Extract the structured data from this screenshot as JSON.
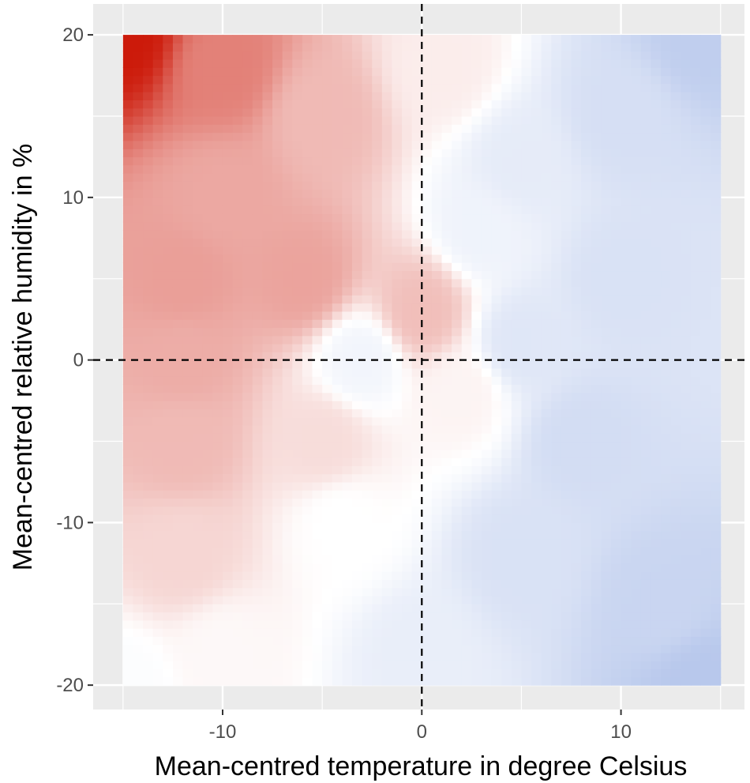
{
  "chart_data": {
    "type": "heatmap",
    "title": "",
    "xlabel": "Mean-centred temperature in degree Celsius",
    "ylabel": "Mean-centred relative humidity in %",
    "xlim": [
      -16.5,
      16.2
    ],
    "ylim": [
      -21.5,
      21.9
    ],
    "data_extent": {
      "x": [
        -15,
        15
      ],
      "y": [
        -20,
        20
      ]
    },
    "x_ticks": [
      -10,
      0,
      10
    ],
    "x_tick_labels": [
      "-10",
      "0",
      "10"
    ],
    "y_ticks": [
      -20,
      -10,
      0,
      10,
      20
    ],
    "y_tick_labels": [
      "-20",
      "-10",
      "0",
      "10",
      "20"
    ],
    "reference_lines": [
      {
        "orientation": "vertical",
        "value": 0,
        "style": "dashed"
      },
      {
        "orientation": "horizontal",
        "value": 0,
        "style": "dashed"
      }
    ],
    "grid": true,
    "legend": "none",
    "colors": {
      "panel_background": "#ebebeb",
      "grid_major": "#ffffff",
      "positive": "#cc1a0a",
      "mid": "#ffffff",
      "negative": "#b8c8ec"
    },
    "surface_anchors": [
      {
        "x": -15,
        "y": 20,
        "value": 1.0
      },
      {
        "x": -10,
        "y": 18,
        "value": 0.55
      },
      {
        "x": -5,
        "y": 15,
        "value": 0.3
      },
      {
        "x": 1,
        "y": 18,
        "value": 0.08
      },
      {
        "x": -10,
        "y": 10,
        "value": 0.38
      },
      {
        "x": -12,
        "y": 5,
        "value": 0.42
      },
      {
        "x": -6,
        "y": 5,
        "value": 0.4
      },
      {
        "x": -12,
        "y": 0,
        "value": 0.36
      },
      {
        "x": -12,
        "y": -5,
        "value": 0.3
      },
      {
        "x": -12,
        "y": -12,
        "value": 0.18
      },
      {
        "x": -10,
        "y": -18,
        "value": 0.03
      },
      {
        "x": -15,
        "y": -20,
        "value": -0.02
      },
      {
        "x": -5,
        "y": -5,
        "value": 0.15
      },
      {
        "x": -4,
        "y": -10,
        "value": 0.0
      },
      {
        "x": -3,
        "y": 0,
        "value": -0.08
      },
      {
        "x": 0,
        "y": 3,
        "value": 0.28
      },
      {
        "x": 2,
        "y": -2,
        "value": 0.05
      },
      {
        "x": 5,
        "y": 1,
        "value": -0.2
      },
      {
        "x": 5,
        "y": 12,
        "value": -0.16
      },
      {
        "x": 3,
        "y": 8,
        "value": -0.1
      },
      {
        "x": 10,
        "y": 15,
        "value": -0.26
      },
      {
        "x": 14,
        "y": 20,
        "value": -0.4
      },
      {
        "x": 10,
        "y": 5,
        "value": -0.24
      },
      {
        "x": 8,
        "y": -5,
        "value": -0.28
      },
      {
        "x": 5,
        "y": -12,
        "value": -0.24
      },
      {
        "x": 12,
        "y": -15,
        "value": -0.34
      },
      {
        "x": 14,
        "y": -20,
        "value": -0.45
      },
      {
        "x": 0,
        "y": -18,
        "value": -0.14
      }
    ]
  }
}
